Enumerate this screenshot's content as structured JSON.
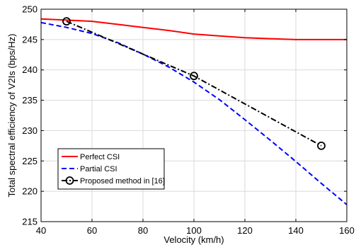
{
  "chart_data": {
    "type": "line",
    "title": "",
    "xlabel": "Velocity (km/h)",
    "ylabel": "Total spectral efficiency of V2Is (bps/Hz)",
    "xlim": [
      40,
      160
    ],
    "ylim": [
      215,
      250
    ],
    "xticks": [
      40,
      60,
      80,
      100,
      120,
      140,
      160
    ],
    "yticks": [
      215,
      220,
      225,
      230,
      235,
      240,
      245,
      250
    ],
    "grid": true,
    "legend_position": "bottom-left",
    "series": [
      {
        "name": "Perfect CSI",
        "color": "#ff0000",
        "line_style": "solid",
        "marker": "none",
        "x": [
          40,
          50,
          60,
          70,
          80,
          90,
          100,
          110,
          120,
          130,
          140,
          150,
          160
        ],
        "y": [
          248.4,
          248.2,
          248.0,
          247.5,
          247.0,
          246.5,
          245.9,
          245.6,
          245.3,
          245.15,
          245.0,
          245.0,
          245.0
        ]
      },
      {
        "name": "Partial CSI",
        "color": "#0000ff",
        "line_style": "dashed",
        "marker": "none",
        "x": [
          40,
          50,
          60,
          70,
          80,
          90,
          100,
          110,
          120,
          130,
          140,
          150,
          160
        ],
        "y": [
          247.8,
          247.0,
          246.0,
          244.5,
          242.6,
          240.5,
          238.0,
          235.1,
          231.8,
          228.4,
          224.9,
          221.3,
          217.8
        ]
      },
      {
        "name": "Proposed method in [16]",
        "color": "#000000",
        "line_style": "dashdot",
        "marker": "circle",
        "x": [
          50,
          100,
          150
        ],
        "y": [
          248.0,
          239.0,
          227.5
        ]
      }
    ]
  }
}
